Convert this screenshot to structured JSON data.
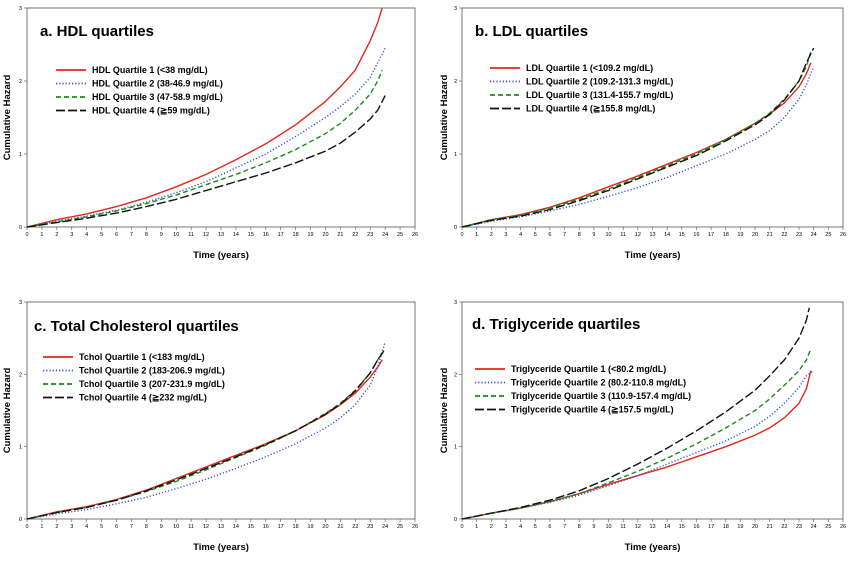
{
  "chart_data": [
    {
      "type": "line",
      "title": "a. HDL quartiles",
      "xlabel": "Time (years)",
      "ylabel": "Cumulative Hazard",
      "xlim": [
        0,
        26
      ],
      "ylim": [
        0,
        3
      ],
      "xticks": [
        "0",
        "1",
        "2",
        "3",
        "4",
        "5",
        "6",
        "7",
        "8",
        "9",
        "10",
        "11",
        "12",
        "13",
        "14",
        "15",
        "16",
        "17",
        "18",
        "19",
        "20",
        "21",
        "22",
        "23",
        "24",
        "25",
        "26"
      ],
      "yticks": [
        "0",
        "1",
        "2",
        "3"
      ],
      "legend_position": "upper-left",
      "series": [
        {
          "name": "HDL Quartile 1 (<38 mg/dL)",
          "color": "#e0281e",
          "style": "solid",
          "x": [
            0,
            2,
            4,
            6,
            8,
            10,
            12,
            14,
            16,
            18,
            20,
            21,
            22,
            22.5,
            23,
            23.5,
            23.8
          ],
          "y": [
            0,
            0.1,
            0.18,
            0.28,
            0.4,
            0.55,
            0.72,
            0.92,
            1.14,
            1.4,
            1.72,
            1.92,
            2.15,
            2.35,
            2.55,
            2.8,
            3.0
          ]
        },
        {
          "name": "HDL Quartile 2 (38-46.9 mg/dL)",
          "color": "#3a4fd8",
          "style": "dotted",
          "x": [
            0,
            2,
            4,
            6,
            8,
            10,
            12,
            14,
            16,
            18,
            20,
            21,
            22,
            23,
            23.5,
            24
          ],
          "y": [
            0,
            0.08,
            0.15,
            0.23,
            0.34,
            0.47,
            0.62,
            0.81,
            1.0,
            1.24,
            1.5,
            1.65,
            1.82,
            2.05,
            2.25,
            2.45
          ]
        },
        {
          "name": "HDL Quartile 3 (47-58.9 mg/dL)",
          "color": "#1a8a1a",
          "style": "dashed",
          "x": [
            0,
            2,
            4,
            6,
            8,
            10,
            12,
            14,
            16,
            18,
            20,
            21,
            22,
            23,
            23.5,
            23.8
          ],
          "y": [
            0,
            0.07,
            0.14,
            0.22,
            0.32,
            0.44,
            0.58,
            0.72,
            0.88,
            1.06,
            1.28,
            1.42,
            1.6,
            1.82,
            2.0,
            2.15
          ]
        },
        {
          "name": "HDL Quartile 4 (≧59 mg/dL)",
          "color": "#111111",
          "style": "longdash",
          "x": [
            0,
            2,
            4,
            6,
            8,
            10,
            12,
            14,
            16,
            18,
            20,
            21,
            22,
            23,
            23.5,
            24
          ],
          "y": [
            0,
            0.06,
            0.12,
            0.19,
            0.28,
            0.38,
            0.5,
            0.62,
            0.74,
            0.88,
            1.04,
            1.15,
            1.3,
            1.48,
            1.6,
            1.8
          ]
        }
      ]
    },
    {
      "type": "line",
      "title": "b. LDL quartiles",
      "xlabel": "Time (years)",
      "ylabel": "Cumulative Hazard",
      "xlim": [
        0,
        26
      ],
      "ylim": [
        0,
        3
      ],
      "xticks": [
        "0",
        "1",
        "2",
        "3",
        "4",
        "5",
        "6",
        "7",
        "8",
        "9",
        "10",
        "11",
        "12",
        "13",
        "14",
        "15",
        "16",
        "17",
        "18",
        "19",
        "20",
        "21",
        "22",
        "23",
        "24",
        "25",
        "26"
      ],
      "yticks": [
        "0",
        "1",
        "2",
        "3"
      ],
      "legend_position": "upper-left",
      "series": [
        {
          "name": "LDL Quartile 1 (<109.2 mg/dL)",
          "color": "#e0281e",
          "style": "solid",
          "x": [
            0,
            2,
            4,
            6,
            8,
            10,
            12,
            14,
            16,
            18,
            20,
            21,
            22,
            23,
            23.5,
            23.8
          ],
          "y": [
            0,
            0.1,
            0.17,
            0.27,
            0.4,
            0.55,
            0.7,
            0.86,
            1.02,
            1.2,
            1.42,
            1.55,
            1.7,
            1.92,
            2.1,
            2.25
          ]
        },
        {
          "name": "LDL Quartile 2 (109.2-131.3 mg/dL)",
          "color": "#3a4fd8",
          "style": "dotted",
          "x": [
            0,
            2,
            4,
            6,
            8,
            10,
            12,
            14,
            16,
            18,
            20,
            21,
            22,
            23,
            23.5,
            24
          ],
          "y": [
            0,
            0.08,
            0.14,
            0.22,
            0.31,
            0.42,
            0.54,
            0.68,
            0.84,
            1.0,
            1.2,
            1.32,
            1.5,
            1.75,
            1.95,
            2.2
          ]
        },
        {
          "name": "LDL Quartile 3 (131.4-155.7 mg/dL)",
          "color": "#1a8a1a",
          "style": "dashed",
          "x": [
            0,
            2,
            4,
            6,
            8,
            10,
            12,
            14,
            16,
            18,
            20,
            21,
            22,
            23,
            23.5,
            23.8
          ],
          "y": [
            0,
            0.1,
            0.16,
            0.26,
            0.38,
            0.52,
            0.68,
            0.84,
            1.0,
            1.2,
            1.42,
            1.56,
            1.75,
            2.0,
            2.2,
            2.4
          ]
        },
        {
          "name": "LDL Quartile 4 (≧155.8 mg/dL)",
          "color": "#111111",
          "style": "longdash",
          "x": [
            0,
            2,
            4,
            6,
            8,
            10,
            12,
            14,
            16,
            18,
            20,
            21,
            22,
            23,
            23.5,
            24
          ],
          "y": [
            0,
            0.09,
            0.15,
            0.24,
            0.36,
            0.5,
            0.66,
            0.82,
            0.98,
            1.18,
            1.4,
            1.54,
            1.74,
            2.0,
            2.25,
            2.45
          ]
        }
      ]
    },
    {
      "type": "line",
      "title": "c. Total Cholesterol quartiles",
      "xlabel": "Time (years)",
      "ylabel": "Cumulative Hazard",
      "xlim": [
        0,
        26
      ],
      "ylim": [
        0,
        3
      ],
      "xticks": [
        "0",
        "1",
        "2",
        "3",
        "4",
        "5",
        "6",
        "7",
        "8",
        "9",
        "10",
        "11",
        "12",
        "13",
        "14",
        "15",
        "16",
        "17",
        "18",
        "19",
        "20",
        "21",
        "22",
        "23",
        "24",
        "25",
        "26"
      ],
      "yticks": [
        "0",
        "1",
        "2",
        "3"
      ],
      "legend_position": "upper-left",
      "series": [
        {
          "name": "Tchol Quartile 1 (<183 mg/dL)",
          "color": "#e0281e",
          "style": "solid",
          "x": [
            0,
            2,
            4,
            6,
            8,
            10,
            12,
            14,
            16,
            18,
            20,
            21,
            22,
            23,
            23.5,
            23.8
          ],
          "y": [
            0,
            0.1,
            0.17,
            0.27,
            0.4,
            0.56,
            0.72,
            0.88,
            1.04,
            1.22,
            1.44,
            1.58,
            1.74,
            1.96,
            2.1,
            2.2
          ]
        },
        {
          "name": "Tchol Quartile 2 (183-206.9 mg/dL)",
          "color": "#3a4fd8",
          "style": "dotted",
          "x": [
            0,
            2,
            4,
            6,
            8,
            10,
            12,
            14,
            16,
            18,
            20,
            21,
            22,
            23,
            23.5,
            24
          ],
          "y": [
            0,
            0.07,
            0.13,
            0.21,
            0.3,
            0.42,
            0.55,
            0.7,
            0.86,
            1.04,
            1.26,
            1.4,
            1.58,
            1.85,
            2.1,
            2.45
          ]
        },
        {
          "name": "Tchol Quartile 3 (207-231.9 mg/dL)",
          "color": "#1a8a1a",
          "style": "dashed",
          "x": [
            0,
            2,
            4,
            6,
            8,
            10,
            12,
            14,
            16,
            18,
            20,
            21,
            22,
            23,
            23.5,
            23.8
          ],
          "y": [
            0,
            0.09,
            0.16,
            0.26,
            0.38,
            0.52,
            0.68,
            0.85,
            1.02,
            1.22,
            1.46,
            1.6,
            1.78,
            2.02,
            2.2,
            2.3
          ]
        },
        {
          "name": "Tchol Quartile 4 (≧232 mg/dL)",
          "color": "#111111",
          "style": "longdash",
          "x": [
            0,
            2,
            4,
            6,
            8,
            10,
            12,
            14,
            16,
            18,
            20,
            21,
            22,
            23,
            23.5,
            24
          ],
          "y": [
            0,
            0.09,
            0.16,
            0.26,
            0.39,
            0.54,
            0.7,
            0.86,
            1.03,
            1.22,
            1.45,
            1.59,
            1.77,
            2.02,
            2.2,
            2.35
          ]
        }
      ]
    },
    {
      "type": "line",
      "title": "d. Triglyceride quartiles",
      "xlabel": "Time (years)",
      "ylabel": "Cumulative Hazard",
      "xlim": [
        0,
        26
      ],
      "ylim": [
        0,
        3
      ],
      "xticks": [
        "0",
        "1",
        "2",
        "3",
        "4",
        "5",
        "6",
        "7",
        "8",
        "9",
        "10",
        "11",
        "12",
        "13",
        "14",
        "15",
        "16",
        "17",
        "18",
        "19",
        "20",
        "21",
        "22",
        "23",
        "24",
        "25",
        "26"
      ],
      "yticks": [
        "0",
        "1",
        "2",
        "3"
      ],
      "legend_position": "upper-left",
      "series": [
        {
          "name": "Triglyceride Quartile 1 (<80.2 mg/dL)",
          "color": "#e0281e",
          "style": "solid",
          "x": [
            0,
            2,
            4,
            6,
            8,
            10,
            12,
            14,
            16,
            18,
            20,
            21,
            22,
            23,
            23.5,
            23.8
          ],
          "y": [
            0,
            0.08,
            0.15,
            0.24,
            0.35,
            0.48,
            0.6,
            0.72,
            0.86,
            1.0,
            1.16,
            1.26,
            1.4,
            1.6,
            1.8,
            2.05
          ]
        },
        {
          "name": "Triglyceride Quartile 2 (80.2-110.8 mg/dL)",
          "color": "#3a4fd8",
          "style": "dotted",
          "x": [
            0,
            2,
            4,
            6,
            8,
            10,
            12,
            14,
            16,
            18,
            20,
            21,
            22,
            23,
            23.5,
            24
          ],
          "y": [
            0,
            0.08,
            0.15,
            0.23,
            0.33,
            0.46,
            0.6,
            0.76,
            0.92,
            1.08,
            1.28,
            1.42,
            1.6,
            1.82,
            1.98,
            2.05
          ]
        },
        {
          "name": "Triglyceride Quartile 3 (110.9-157.4 mg/dL)",
          "color": "#1a8a1a",
          "style": "dashed",
          "x": [
            0,
            2,
            4,
            6,
            8,
            10,
            12,
            14,
            16,
            18,
            20,
            21,
            22,
            23,
            23.5,
            23.8
          ],
          "y": [
            0,
            0.08,
            0.15,
            0.24,
            0.35,
            0.5,
            0.66,
            0.84,
            1.04,
            1.26,
            1.5,
            1.66,
            1.85,
            2.05,
            2.2,
            2.35
          ]
        },
        {
          "name": "Triglyceride Quartile 4 (≧157.5 mg/dL)",
          "color": "#111111",
          "style": "longdash",
          "x": [
            0,
            2,
            4,
            6,
            8,
            10,
            12,
            14,
            16,
            18,
            20,
            21,
            22,
            23,
            23.5,
            23.7
          ],
          "y": [
            0,
            0.08,
            0.16,
            0.26,
            0.39,
            0.56,
            0.76,
            0.98,
            1.22,
            1.48,
            1.78,
            1.98,
            2.2,
            2.5,
            2.75,
            2.92
          ]
        }
      ]
    }
  ]
}
